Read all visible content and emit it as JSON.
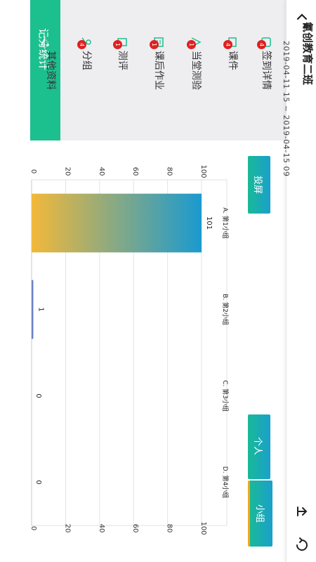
{
  "header": {
    "title": "氰创教育二班",
    "date_range": "2019-04-11 15 ~ 2019-04-15 09"
  },
  "sidebar": {
    "items": [
      {
        "label": "签到详情",
        "badge": "4",
        "icon": "sign-in-icon"
      },
      {
        "label": "课件",
        "badge": "4",
        "icon": "courseware-icon"
      },
      {
        "label": "当堂测验",
        "badge": "1",
        "icon": "quiz-icon"
      },
      {
        "label": "课后作业",
        "badge": "1",
        "icon": "homework-icon"
      },
      {
        "label": "测评",
        "badge": "1",
        "icon": "assessment-icon"
      },
      {
        "label": "分组",
        "badge": "4",
        "icon": "group-icon"
      },
      {
        "label": "其他资料",
        "badge": "",
        "icon": "other-materials-icon"
      }
    ],
    "stats_label": "记分统计"
  },
  "buttons": {
    "screen": "投屏",
    "individual": "个人",
    "group": "小组"
  },
  "colors": {
    "accent_green": "#1cbf8e",
    "bar_gradient_start": "#f2b83a",
    "bar_gradient_end": "#1a9ad0",
    "badge_red": "#e02020",
    "bar_small": "#6a82c4"
  },
  "chart_data": {
    "type": "bar",
    "categories": [
      "A. 第1小组",
      "B. 第2小组",
      "C. 第3小组",
      "D. 第4小组"
    ],
    "values": [
      101,
      1,
      0,
      0
    ],
    "ylim": [
      0,
      100
    ],
    "yticks": [
      0,
      20,
      40,
      60,
      80,
      100
    ],
    "grid": true
  }
}
